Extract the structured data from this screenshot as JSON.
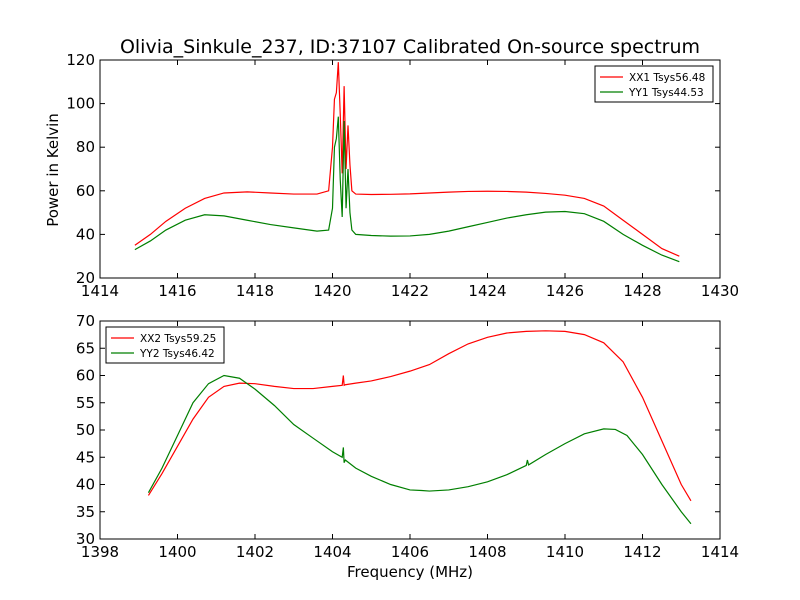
{
  "figure": {
    "title": "Olivia_Sinkule_237, ID:37107 Calibrated On-source spectrum",
    "ylabel": "Power in Kelvin",
    "xlabel": "Frequency (MHz)"
  },
  "colors": {
    "red": "#ff0000",
    "green": "#007f00"
  },
  "chart_data": [
    {
      "type": "line",
      "xlim": [
        1414,
        1430
      ],
      "ylim": [
        20,
        120
      ],
      "xticks": [
        1414,
        1416,
        1418,
        1420,
        1422,
        1424,
        1426,
        1428,
        1430
      ],
      "yticks": [
        20,
        40,
        60,
        80,
        100,
        120
      ],
      "grid": false,
      "legend_placement": "top-right",
      "series": [
        {
          "name": "XX1 Tsys56.48",
          "color": "#ff0000",
          "x": [
            1414.9,
            1415.3,
            1415.7,
            1416.2,
            1416.7,
            1417.2,
            1417.8,
            1418.4,
            1419.0,
            1419.6,
            1419.9,
            1420.0,
            1420.05,
            1420.1,
            1420.15,
            1420.2,
            1420.25,
            1420.3,
            1420.35,
            1420.4,
            1420.45,
            1420.5,
            1420.6,
            1421.0,
            1421.5,
            1422.0,
            1422.5,
            1423.0,
            1423.5,
            1424.0,
            1424.5,
            1425.0,
            1425.5,
            1426.0,
            1426.5,
            1427.0,
            1427.5,
            1428.0,
            1428.5,
            1428.95
          ],
          "y": [
            35,
            40,
            46,
            52,
            56.5,
            59,
            59.5,
            59,
            58.5,
            58.5,
            60,
            80,
            102,
            105,
            119,
            95,
            68,
            108,
            70,
            90,
            72,
            60,
            58.5,
            58.3,
            58.4,
            58.6,
            59,
            59.4,
            59.7,
            59.8,
            59.7,
            59.4,
            58.8,
            58,
            56.5,
            53,
            46.5,
            40,
            33.5,
            30
          ]
        },
        {
          "name": "YY1 Tsys44.53",
          "color": "#007f00",
          "x": [
            1414.9,
            1415.3,
            1415.7,
            1416.2,
            1416.7,
            1417.2,
            1417.8,
            1418.4,
            1419.0,
            1419.6,
            1419.9,
            1420.0,
            1420.05,
            1420.1,
            1420.15,
            1420.2,
            1420.25,
            1420.3,
            1420.35,
            1420.4,
            1420.45,
            1420.5,
            1420.6,
            1421.0,
            1421.5,
            1422.0,
            1422.5,
            1423.0,
            1423.5,
            1424.0,
            1424.5,
            1425.0,
            1425.5,
            1426.0,
            1426.5,
            1427.0,
            1427.5,
            1428.0,
            1428.5,
            1428.95
          ],
          "y": [
            33,
            37,
            42,
            46.5,
            49,
            48.5,
            46.5,
            44.5,
            43,
            41.5,
            42,
            52,
            80,
            84,
            94,
            65,
            48,
            92,
            52,
            70,
            50,
            42,
            40,
            39.5,
            39.2,
            39.3,
            40,
            41.5,
            43.5,
            45.5,
            47.5,
            49,
            50.2,
            50.5,
            49.5,
            46,
            40,
            35,
            30.5,
            27.5
          ]
        }
      ]
    },
    {
      "type": "line",
      "xlim": [
        1398,
        1414
      ],
      "ylim": [
        30,
        70
      ],
      "xticks": [
        1398,
        1400,
        1402,
        1404,
        1406,
        1408,
        1410,
        1412,
        1414
      ],
      "yticks": [
        30,
        35,
        40,
        45,
        50,
        55,
        60,
        65,
        70
      ],
      "grid": false,
      "legend_placement": "top-left",
      "series": [
        {
          "name": "XX2 Tsys59.25",
          "color": "#ff0000",
          "x": [
            1399.25,
            1399.6,
            1400.0,
            1400.4,
            1400.8,
            1401.2,
            1401.6,
            1402.0,
            1402.5,
            1403.0,
            1403.5,
            1404.0,
            1404.25,
            1404.28,
            1404.3,
            1404.33,
            1404.6,
            1405.0,
            1405.5,
            1406.0,
            1406.5,
            1407.0,
            1407.5,
            1408.0,
            1408.5,
            1409.0,
            1409.5,
            1410.0,
            1410.5,
            1411.0,
            1411.5,
            1412.0,
            1412.5,
            1413.0,
            1413.25
          ],
          "y": [
            38,
            42,
            47,
            52,
            56,
            58,
            58.6,
            58.5,
            58,
            57.6,
            57.6,
            58,
            58.2,
            60,
            58.2,
            58.3,
            58.6,
            59,
            59.8,
            60.8,
            62,
            64,
            65.8,
            67,
            67.8,
            68.1,
            68.2,
            68.1,
            67.5,
            66,
            62.5,
            56,
            48,
            40,
            37
          ]
        },
        {
          "name": "YY2 Tsys46.42",
          "color": "#007f00",
          "x": [
            1399.25,
            1399.6,
            1400.0,
            1400.4,
            1400.8,
            1401.2,
            1401.6,
            1402.0,
            1402.5,
            1403.0,
            1403.5,
            1404.0,
            1404.25,
            1404.28,
            1404.3,
            1404.33,
            1404.6,
            1405.0,
            1405.5,
            1406.0,
            1406.3,
            1406.5,
            1407.0,
            1407.5,
            1408.0,
            1408.5,
            1409.0,
            1409.03,
            1409.06,
            1409.5,
            1410.0,
            1410.5,
            1411.0,
            1411.3,
            1411.6,
            1412.0,
            1412.5,
            1413.0,
            1413.25
          ],
          "y": [
            38.5,
            43,
            49,
            55,
            58.5,
            60,
            59.5,
            57.5,
            54.5,
            51,
            48.5,
            46,
            45,
            46.8,
            44,
            44.5,
            43,
            41.5,
            40,
            39,
            38.9,
            38.8,
            39,
            39.6,
            40.5,
            41.8,
            43.5,
            44.5,
            43.6,
            45.5,
            47.5,
            49.3,
            50.2,
            50.1,
            49,
            45.5,
            40,
            35,
            32.8
          ]
        }
      ]
    }
  ]
}
